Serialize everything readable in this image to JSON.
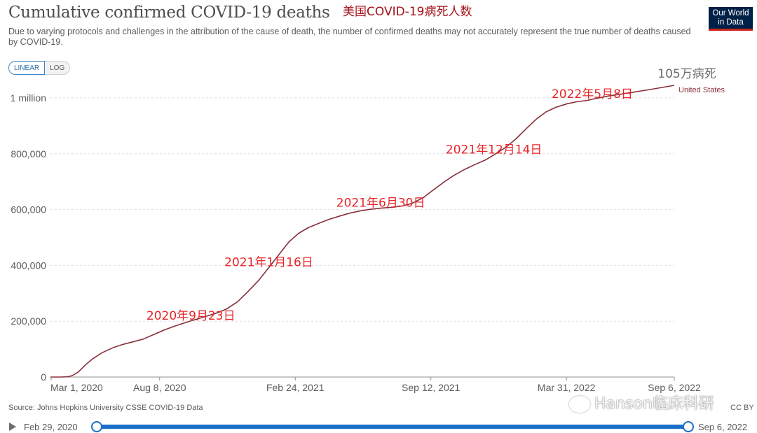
{
  "header": {
    "title": "Cumulative confirmed COVID-19 deaths",
    "title_cn": "美国COVID-19病死人数",
    "subtitle": "Due to varying protocols and challenges in the attribution of the cause of death, the number of confirmed deaths may not accurately represent the true number of deaths caused by COVID-19.",
    "logo_line1": "Our World",
    "logo_line2": "in Data"
  },
  "scale_toggle": {
    "linear": "LINEAR",
    "log": "LOG",
    "selected": "LINEAR"
  },
  "chart_data": {
    "type": "line",
    "xlabel": "",
    "ylabel": "",
    "x_range": [
      "2020-02-29",
      "2022-09-06"
    ],
    "ylim": [
      0,
      1050000
    ],
    "grid": true,
    "y_ticks": [
      {
        "value": 0,
        "label": "0"
      },
      {
        "value": 200000,
        "label": "200,000"
      },
      {
        "value": 400000,
        "label": "400,000"
      },
      {
        "value": 600000,
        "label": "600,000"
      },
      {
        "value": 800000,
        "label": "800,000"
      },
      {
        "value": 1000000,
        "label": "1 million"
      }
    ],
    "x_ticks": [
      {
        "date": "2020-03-01",
        "label": "Mar 1, 2020"
      },
      {
        "date": "2020-08-08",
        "label": "Aug 8, 2020"
      },
      {
        "date": "2021-02-24",
        "label": "Feb 24, 2021"
      },
      {
        "date": "2021-09-12",
        "label": "Sep 12, 2021"
      },
      {
        "date": "2022-03-31",
        "label": "Mar 31, 2022"
      },
      {
        "date": "2022-09-06",
        "label": "Sep 6, 2022"
      }
    ],
    "series": [
      {
        "name": "United States",
        "color": "#883039",
        "points": [
          [
            "2020-02-29",
            0
          ],
          [
            "2020-03-15",
            100
          ],
          [
            "2020-03-25",
            1000
          ],
          [
            "2020-04-01",
            5000
          ],
          [
            "2020-04-10",
            18000
          ],
          [
            "2020-04-20",
            42000
          ],
          [
            "2020-05-01",
            65000
          ],
          [
            "2020-05-15",
            87000
          ],
          [
            "2020-06-01",
            106000
          ],
          [
            "2020-06-15",
            117000
          ],
          [
            "2020-07-01",
            127000
          ],
          [
            "2020-07-15",
            136000
          ],
          [
            "2020-08-01",
            154000
          ],
          [
            "2020-08-15",
            169000
          ],
          [
            "2020-09-01",
            184000
          ],
          [
            "2020-09-23",
            201000
          ],
          [
            "2020-10-15",
            217000
          ],
          [
            "2020-11-01",
            230000
          ],
          [
            "2020-11-15",
            244000
          ],
          [
            "2020-12-01",
            270000
          ],
          [
            "2020-12-15",
            303000
          ],
          [
            "2021-01-01",
            346000
          ],
          [
            "2021-01-16",
            392000
          ],
          [
            "2021-02-01",
            442000
          ],
          [
            "2021-02-15",
            485000
          ],
          [
            "2021-03-01",
            515000
          ],
          [
            "2021-03-15",
            535000
          ],
          [
            "2021-04-01",
            552000
          ],
          [
            "2021-04-15",
            565000
          ],
          [
            "2021-05-01",
            577000
          ],
          [
            "2021-05-15",
            587000
          ],
          [
            "2021-06-01",
            596000
          ],
          [
            "2021-06-15",
            601000
          ],
          [
            "2021-06-30",
            605000
          ],
          [
            "2021-07-15",
            608000
          ],
          [
            "2021-08-01",
            613000
          ],
          [
            "2021-08-15",
            622000
          ],
          [
            "2021-09-01",
            643000
          ],
          [
            "2021-09-15",
            669000
          ],
          [
            "2021-10-01",
            698000
          ],
          [
            "2021-10-15",
            721000
          ],
          [
            "2021-11-01",
            744000
          ],
          [
            "2021-11-15",
            760000
          ],
          [
            "2021-12-01",
            777000
          ],
          [
            "2021-12-14",
            796000
          ],
          [
            "2022-01-01",
            824000
          ],
          [
            "2022-01-15",
            852000
          ],
          [
            "2022-02-01",
            893000
          ],
          [
            "2022-02-15",
            925000
          ],
          [
            "2022-03-01",
            950000
          ],
          [
            "2022-03-15",
            966000
          ],
          [
            "2022-04-01",
            979000
          ],
          [
            "2022-04-15",
            986000
          ],
          [
            "2022-05-01",
            991000
          ],
          [
            "2022-05-08",
            995000
          ],
          [
            "2022-06-01",
            1007000
          ],
          [
            "2022-07-01",
            1018000
          ],
          [
            "2022-08-01",
            1030000
          ],
          [
            "2022-09-06",
            1045000
          ]
        ]
      }
    ],
    "series_end_label": "United States",
    "end_annotation": "105万病死",
    "date_annotations": [
      {
        "date": "2020-09-23",
        "value": 201000,
        "label": "2020年9月23日"
      },
      {
        "date": "2021-01-16",
        "value": 392000,
        "label": "2021年1月16日"
      },
      {
        "date": "2021-06-30",
        "value": 605000,
        "label": "2021年6月30日"
      },
      {
        "date": "2021-12-14",
        "value": 796000,
        "label": "2021年12月14日"
      },
      {
        "date": "2022-05-08",
        "value": 995000,
        "label": "2022年5月8日"
      }
    ]
  },
  "footer": {
    "source": "Source: Johns Hopkins University CSSE COVID-19 Data",
    "license": "CC BY",
    "watermark": "Hanson临床科研"
  },
  "timeline": {
    "start_label": "Feb 29, 2020",
    "end_label": "Sep 6, 2022",
    "start_fraction": 0,
    "end_fraction": 1
  },
  "colors": {
    "series": "#883039",
    "annotation": "#e8262a",
    "timeline": "#1a6fc9",
    "logo_bg": "#002147",
    "logo_accent": "#ce261e"
  }
}
